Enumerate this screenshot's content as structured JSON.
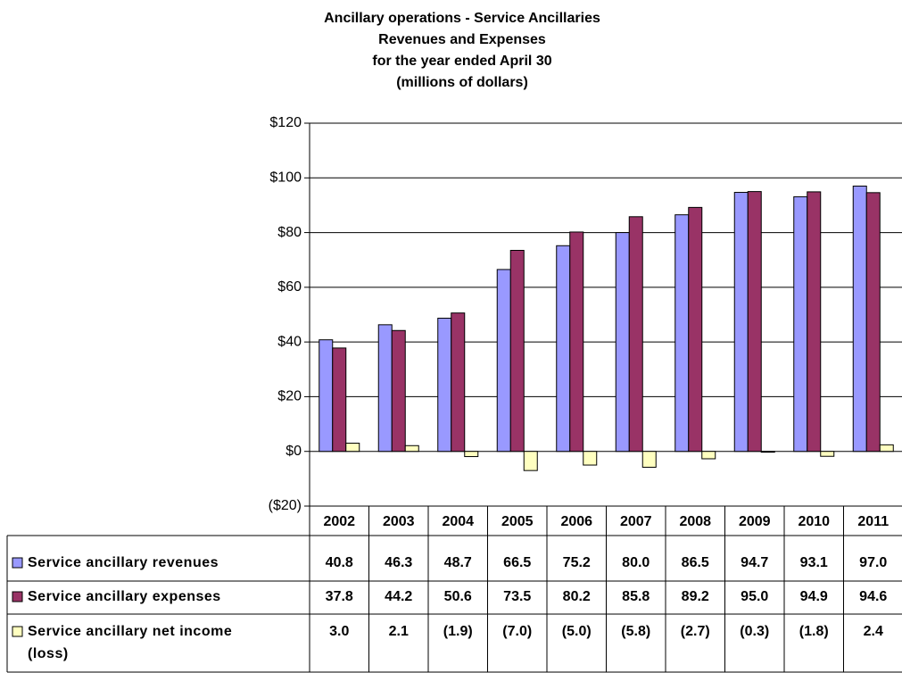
{
  "chart_data": {
    "type": "bar",
    "title": [
      "Ancillary operations - Service Ancillaries",
      "Revenues and Expenses",
      "for the year ended April 30",
      "(millions of dollars)"
    ],
    "categories": [
      "2002",
      "2003",
      "2004",
      "2005",
      "2006",
      "2007",
      "2008",
      "2009",
      "2010",
      "2011"
    ],
    "series": [
      {
        "name": "Service ancillary revenues",
        "color": "#9999ff",
        "values": [
          40.8,
          46.3,
          48.7,
          66.5,
          75.2,
          80,
          86.5,
          94.7,
          93.1,
          97
        ],
        "value_labels": [
          "40.8",
          "46.3",
          "48.7",
          "66.5",
          "75.2",
          "80.0",
          "86.5",
          "94.7",
          "93.1",
          "97.0"
        ]
      },
      {
        "name": "Service ancillary expenses",
        "color": "#993366",
        "values": [
          37.8,
          44.2,
          50.6,
          73.5,
          80.2,
          85.8,
          89.2,
          95,
          94.9,
          94.6
        ],
        "value_labels": [
          "37.8",
          "44.2",
          "50.6",
          "73.5",
          "80.2",
          "85.8",
          "89.2",
          "95.0",
          "94.9",
          "94.6"
        ]
      },
      {
        "name": "Service ancillary net income (loss)",
        "color": "#ffffc0",
        "values": [
          3,
          2.1,
          -1.9,
          -7,
          -5,
          -5.8,
          -2.7,
          -0.3,
          -1.8,
          2.4
        ],
        "value_labels": [
          "3.0",
          "2.1",
          "(1.9)",
          "(7.0)",
          "(5.0)",
          "(5.8)",
          "(2.7)",
          "(0.3)",
          "(1.8)",
          "2.4"
        ]
      }
    ],
    "ylim": [
      -20,
      120
    ],
    "yticks": [
      {
        "value": -20,
        "label": "($20)"
      },
      {
        "value": 0,
        "label": "$0"
      },
      {
        "value": 20,
        "label": "$20"
      },
      {
        "value": 40,
        "label": "$40"
      },
      {
        "value": 60,
        "label": "$60"
      },
      {
        "value": 80,
        "label": "$80"
      },
      {
        "value": 100,
        "label": "$100"
      },
      {
        "value": 120,
        "label": "$120"
      }
    ],
    "grid": true
  }
}
